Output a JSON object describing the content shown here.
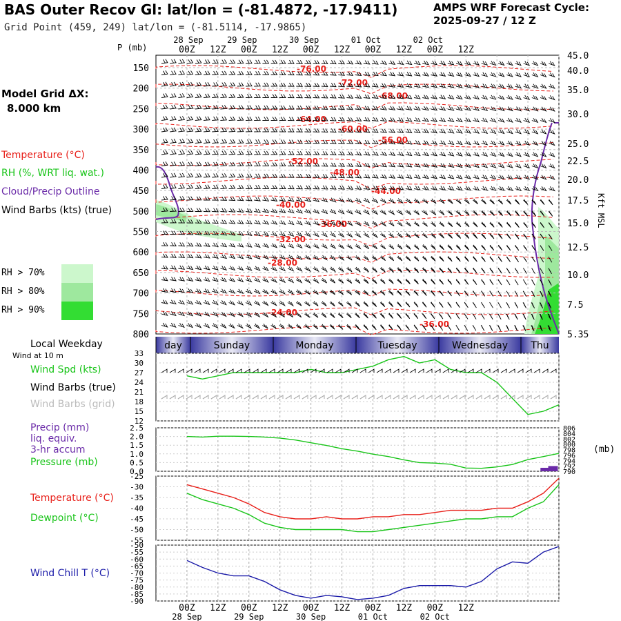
{
  "header": {
    "title": "BAS Outer Recov Gl:  lat/lon = (-81.4872, -17.9411)",
    "grid_point": "Grid Point (459, 249) lat/lon = (-81.5114, -17.9865)",
    "cycle_label": "AMPS WRF Forecast Cycle:",
    "cycle_value": "2025-09-27 / 12  Z",
    "model_grid_label": "Model Grid ΔX:",
    "model_grid_value": "8.000 km"
  },
  "legend": {
    "temperature": "Temperature (°C)",
    "rh": "RH (%, WRT liq. wat.)",
    "cloud": "Cloud/Precip Outline",
    "barbs": "Wind Barbs (kts) (true)",
    "rh70": "RH > 70%",
    "rh80": "RH > 80%",
    "rh90": "RH > 90%",
    "p_axis": "P (mb)",
    "kft": "Kft MSL",
    "local_weekday": "Local Weekday",
    "wind_at": "Wind at 10 m",
    "wind_spd": "Wind Spd (kts)",
    "barbs_true": "Wind Barbs (true)",
    "barbs_grid": "Wind Barbs (grid)",
    "precip1": "Precip (mm)",
    "precip2": "liq. equiv.",
    "precip3": "3-hr accum",
    "pressure": "Pressure (mb)",
    "mb": "(mb)",
    "temp2": "Temperature (°C)",
    "dewpoint": "Dewpoint (°C)",
    "windchill": "Wind Chill T (°C)"
  },
  "colors": {
    "temp": "#e8201a",
    "rh70": "#ccf7cc",
    "rh80": "#9ee89e",
    "rh90": "#33dd33",
    "cloud": "#6a2aa8",
    "dew": "#18c418",
    "wchill": "#1a1aa8",
    "grid": "#9a9a9a",
    "precip": "#6a2aa8"
  },
  "time_axis": {
    "ticks": [
      "00Z",
      "12Z",
      "00Z",
      "12Z",
      "00Z",
      "12Z",
      "00Z",
      "12Z",
      "00Z",
      "12Z"
    ],
    "dates": [
      "28 Sep",
      "29 Sep",
      "30 Sep",
      "01 Oct",
      "02 Oct"
    ],
    "days": [
      "day",
      "Sunday",
      "Monday",
      "Tuesday",
      "Wednesday",
      "Thu"
    ]
  },
  "chart_data": [
    {
      "type": "contour",
      "title": "Vertical cross-section",
      "ylabel": "P (mb)",
      "yticks": [
        "150",
        "200",
        "250",
        "300",
        "350",
        "400",
        "450",
        "500",
        "550",
        "600",
        "650",
        "700",
        "750",
        "800"
      ],
      "right_ticks": [
        "45.0",
        "40.0",
        "35.0",
        "30.0",
        "25.0",
        "22.5",
        "20.0",
        "17.5",
        "15.0",
        "12.5",
        "10.0",
        "7.5",
        "5.35"
      ],
      "temperature_labels": [
        "-76.00",
        "-72.00",
        "-68.00",
        "-64.00",
        "-60.00",
        "-56.00",
        "-52.00",
        "-48.00",
        "-44.00",
        "-40.00",
        "-36.00",
        "-32.00",
        "-28.00",
        "-24.00",
        "-36.00"
      ]
    },
    {
      "type": "line",
      "ylabel": "Wind Spd (kts)",
      "yticks": [
        "33",
        "30",
        "27",
        "24",
        "21",
        "18",
        "15",
        "12"
      ],
      "ylim": [
        12,
        33
      ],
      "x": [
        0,
        6,
        12,
        18,
        24,
        30,
        36,
        42,
        48,
        54,
        60,
        66,
        72,
        78,
        84,
        90,
        96,
        102,
        108,
        114,
        120,
        126,
        132,
        138,
        144
      ],
      "series": [
        {
          "values": [
            26,
            25,
            26,
            27,
            27,
            27,
            27,
            27,
            28,
            27,
            27,
            28,
            29,
            31,
            32,
            30,
            31,
            28,
            27,
            27,
            24,
            19,
            14,
            15,
            17
          ]
        }
      ]
    },
    {
      "type": "line",
      "ylabel": "Precip (mm)",
      "yticks": [
        "2.5",
        "2.0",
        "1.5",
        "1.0",
        "0.5",
        "0.0"
      ],
      "right_ticks": [
        "806",
        "804",
        "802",
        "800",
        "798",
        "796",
        "794",
        "792",
        "790"
      ],
      "x": [
        0,
        6,
        12,
        18,
        24,
        30,
        36,
        42,
        48,
        54,
        60,
        66,
        72,
        78,
        84,
        90,
        96,
        102,
        108,
        114,
        120,
        126,
        132,
        138,
        144
      ],
      "series": [
        {
          "values": [
            802.8,
            802.6,
            802.9,
            802.9,
            802.8,
            802.6,
            802.2,
            801.5,
            800.5,
            799.5,
            798.3,
            797.4,
            796.3,
            795.4,
            794.2,
            793.2,
            793.0,
            792.6,
            791.2,
            791.1,
            791.6,
            792.5,
            794.3,
            795.4,
            796.6
          ]
        }
      ],
      "precip_bars": [
        {
          "x": 139,
          "value": 0.2
        },
        {
          "x": 142,
          "value": 0.3
        }
      ]
    },
    {
      "type": "line",
      "yticks": [
        "-25",
        "-30",
        "-35",
        "-40",
        "-45",
        "-50",
        "-55"
      ],
      "ylim": [
        -55,
        -25
      ],
      "x": [
        0,
        6,
        12,
        18,
        24,
        30,
        36,
        42,
        48,
        54,
        60,
        66,
        72,
        78,
        84,
        90,
        96,
        102,
        108,
        114,
        120,
        126,
        132,
        138,
        144
      ],
      "series": [
        {
          "name": "Temperature (°C)",
          "values": [
            -29,
            -31,
            -33,
            -35,
            -38,
            -42,
            -44,
            -45,
            -45,
            -44,
            -45,
            -45,
            -44,
            -44,
            -43,
            -43,
            -42,
            -41,
            -41,
            -41,
            -40,
            -40,
            -37,
            -33,
            -26
          ]
        },
        {
          "name": "Dewpoint (°C)",
          "values": [
            -33,
            -36,
            -38,
            -40,
            -43,
            -47,
            -49,
            -50,
            -50,
            -50,
            -50,
            -51,
            -51,
            -50,
            -49,
            -48,
            -47,
            -46,
            -45,
            -45,
            -44,
            -44,
            -40,
            -37,
            -29
          ]
        }
      ]
    },
    {
      "type": "line",
      "ylabel": "Wind Chill T (°C)",
      "yticks": [
        "-50",
        "-55",
        "-60",
        "-65",
        "-70",
        "-75",
        "-80",
        "-85",
        "-90"
      ],
      "ylim": [
        -90,
        -50
      ],
      "x": [
        0,
        6,
        12,
        18,
        24,
        30,
        36,
        42,
        48,
        54,
        60,
        66,
        72,
        78,
        84,
        90,
        96,
        102,
        108,
        114,
        120,
        126,
        132,
        138,
        144
      ],
      "series": [
        {
          "name": "Wind Chill T (°C)",
          "values": [
            -61,
            -66,
            -70,
            -72,
            -72,
            -76,
            -82,
            -86,
            -88,
            -86,
            -87,
            -89,
            -88,
            -86,
            -81,
            -79,
            -79,
            -79,
            -80,
            -76,
            -67,
            -62,
            -63,
            -55,
            -51
          ]
        }
      ]
    }
  ]
}
